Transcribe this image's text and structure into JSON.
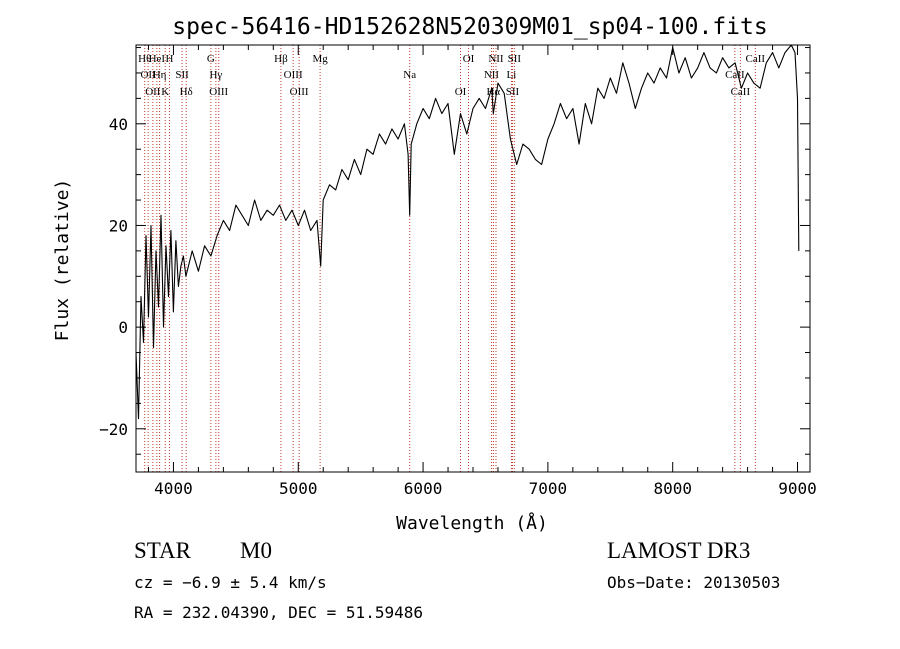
{
  "chart_data": {
    "type": "line",
    "title": "spec-56416-HD152628N520309M01_sp04-100.fits",
    "xlabel": "Wavelength (Å)",
    "ylabel": "Flux (relative)",
    "xlim": [
      3700,
      9100
    ],
    "ylim": [
      -28.5,
      55.5
    ],
    "x_ticks": [
      4000,
      5000,
      6000,
      7000,
      8000,
      9000
    ],
    "x_tick_labels": [
      "4000",
      "5000",
      "6000",
      "7000",
      "8000",
      "9000"
    ],
    "y_ticks": [
      -20,
      0,
      20,
      40
    ],
    "y_tick_labels": [
      "−20",
      "0",
      "20",
      "40"
    ],
    "grid": false,
    "series": [
      {
        "name": "spectrum",
        "x": [
          3700,
          3720,
          3740,
          3760,
          3780,
          3800,
          3820,
          3840,
          3860,
          3880,
          3900,
          3920,
          3940,
          3960,
          3980,
          4000,
          4020,
          4040,
          4060,
          4080,
          4100,
          4150,
          4200,
          4250,
          4300,
          4350,
          4400,
          4450,
          4500,
          4550,
          4600,
          4650,
          4700,
          4750,
          4800,
          4850,
          4900,
          4950,
          5000,
          5050,
          5100,
          5150,
          5180,
          5200,
          5250,
          5300,
          5350,
          5400,
          5450,
          5500,
          5550,
          5600,
          5650,
          5700,
          5750,
          5800,
          5850,
          5880,
          5893,
          5905,
          5950,
          6000,
          6050,
          6100,
          6150,
          6200,
          6250,
          6300,
          6350,
          6400,
          6450,
          6500,
          6550,
          6563,
          6600,
          6650,
          6700,
          6750,
          6800,
          6850,
          6900,
          6950,
          7000,
          7050,
          7100,
          7150,
          7200,
          7250,
          7300,
          7350,
          7400,
          7450,
          7500,
          7550,
          7600,
          7650,
          7700,
          7750,
          7800,
          7850,
          7900,
          7950,
          8000,
          8050,
          8100,
          8150,
          8200,
          8250,
          8300,
          8350,
          8400,
          8450,
          8500,
          8550,
          8600,
          8650,
          8700,
          8750,
          8800,
          8850,
          8900,
          8950,
          8980,
          9000,
          9010
        ],
        "y": [
          -5,
          -18,
          6,
          -3,
          18,
          2,
          20,
          -4,
          15,
          4,
          22,
          0,
          16,
          6,
          19,
          3,
          17,
          8,
          12,
          14,
          10,
          15,
          11,
          16,
          14,
          18,
          21,
          19,
          24,
          22,
          20,
          25,
          21,
          23,
          22,
          24,
          21,
          23,
          20,
          23,
          19,
          21,
          12,
          25,
          28,
          27,
          31,
          29,
          33,
          30,
          35,
          34,
          38,
          36,
          39,
          37,
          40,
          34,
          22,
          36,
          40,
          43,
          41,
          45,
          42,
          44,
          34,
          42,
          38,
          43,
          45,
          43,
          47,
          42,
          48,
          46,
          37,
          32,
          36,
          35,
          33,
          32,
          37,
          40,
          44,
          41,
          43,
          36,
          44,
          40,
          47,
          45,
          49,
          46,
          52,
          48,
          43,
          47,
          50,
          48,
          51,
          49,
          55,
          50,
          53,
          49,
          51,
          54,
          51,
          50,
          53,
          51,
          52,
          47,
          50,
          48,
          47,
          52,
          54,
          51,
          54,
          56,
          54,
          45,
          15
        ]
      }
    ],
    "line_markers": [
      {
        "wl": 3770,
        "label": "Hθ"
      },
      {
        "wl": 3797,
        "label": "OII"
      },
      {
        "wl": 3835,
        "label": "OII"
      },
      {
        "wl": 3867,
        "label": "HeI"
      },
      {
        "wl": 3889,
        "label": "Hη"
      },
      {
        "wl": 3934,
        "label": "K"
      },
      {
        "wl": 3968,
        "label": "H"
      },
      {
        "wl": 4069,
        "label": "SII"
      },
      {
        "wl": 4102,
        "label": "Hδ"
      },
      {
        "wl": 4300,
        "label": "G"
      },
      {
        "wl": 4340,
        "label": "Hγ"
      },
      {
        "wl": 4363,
        "label": "OIII"
      },
      {
        "wl": 4861,
        "label": "Hβ"
      },
      {
        "wl": 4959,
        "label": "OIII"
      },
      {
        "wl": 5007,
        "label": "OIII"
      },
      {
        "wl": 5175,
        "label": "Mg"
      },
      {
        "wl": 5893,
        "label": "Na"
      },
      {
        "wl": 6300,
        "label": "OI"
      },
      {
        "wl": 6364,
        "label": "OI"
      },
      {
        "wl": 6548,
        "label": "NII"
      },
      {
        "wl": 6563,
        "label": "Hα"
      },
      {
        "wl": 6584,
        "label": "NII"
      },
      {
        "wl": 6708,
        "label": "Li"
      },
      {
        "wl": 6716,
        "label": "SII"
      },
      {
        "wl": 6731,
        "label": "SII"
      },
      {
        "wl": 8498,
        "label": "CaII"
      },
      {
        "wl": 8542,
        "label": "CaII"
      },
      {
        "wl": 8662,
        "label": "CaII"
      }
    ]
  },
  "info": {
    "object_class": "STAR",
    "subclass": "M0",
    "survey": "LAMOST DR3",
    "redshift": "cz = −6.9 ± 5.4 km/s",
    "obs_date": "Obs−Date: 20130503",
    "coords": "RA = 232.04390, DEC =  51.59486"
  },
  "colors": {
    "axis": "#000000",
    "spectrum": "#000000",
    "marker_line": "#c0392b"
  }
}
